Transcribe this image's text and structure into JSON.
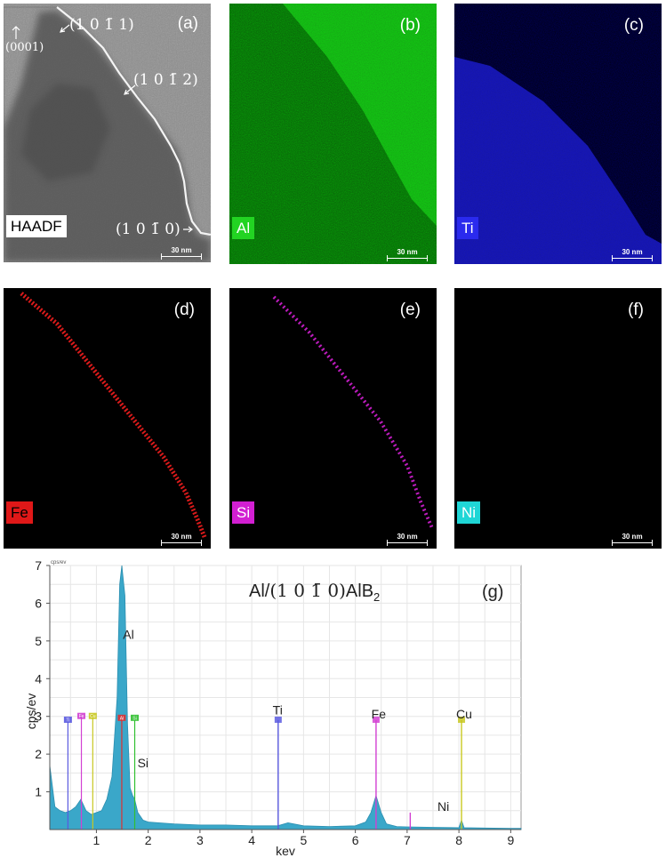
{
  "panels": [
    {
      "tag": "(a)",
      "element": "HAADF",
      "scale": "30 nm"
    },
    {
      "tag": "(b)",
      "element": "Al",
      "scale": "30 nm"
    },
    {
      "tag": "(c)",
      "element": "Ti",
      "scale": "30 nm"
    },
    {
      "tag": "(d)",
      "element": "Fe",
      "scale": "30 nm"
    },
    {
      "tag": "(e)",
      "element": "Si",
      "scale": "30 nm"
    },
    {
      "tag": "(f)",
      "element": "Ni",
      "scale": "30 nm"
    }
  ],
  "facets": {
    "basal": "(0001)",
    "f1011": "(1 0 1̄ 1)",
    "f1012": "(1 0 1̄ 2)",
    "f1010": "(1 0 1̄ 0)"
  },
  "colors": {
    "al": "#22d422",
    "ti": "#2a2aee",
    "fe": "#e01818",
    "si": "#d21fd2",
    "ni": "#1fd6d6",
    "spectrum": "#3aa7c9"
  },
  "chart_data": {
    "type": "area",
    "tag": "(g)",
    "title_main": "Al/",
    "title_index": "(1 0 1̄ 0)",
    "title_phase": "AlB",
    "title_sub": "2",
    "xlabel": "kev",
    "ylabel": "cps/ev",
    "yunit_small": "cps/ev",
    "xlim": [
      0.1,
      9.2
    ],
    "ylim": [
      0,
      7
    ],
    "xticks": [
      1,
      2,
      3,
      4,
      5,
      6,
      7,
      8,
      9
    ],
    "yticks": [
      1,
      2,
      3,
      4,
      5,
      6,
      7
    ],
    "grid": true,
    "spectrum": {
      "x": [
        0.1,
        0.2,
        0.3,
        0.4,
        0.5,
        0.6,
        0.7,
        0.8,
        0.9,
        1.0,
        1.1,
        1.2,
        1.3,
        1.4,
        1.45,
        1.49,
        1.55,
        1.6,
        1.65,
        1.7,
        1.74,
        1.8,
        1.9,
        2.0,
        2.2,
        2.5,
        3.0,
        3.5,
        4.0,
        4.5,
        4.7,
        5.0,
        5.5,
        6.0,
        6.2,
        6.3,
        6.4,
        6.5,
        6.6,
        6.8,
        7.0,
        7.5,
        8.0,
        8.05,
        8.1,
        8.5,
        9.0,
        9.2
      ],
      "y": [
        1.7,
        0.6,
        0.5,
        0.45,
        0.5,
        0.6,
        0.8,
        0.5,
        0.4,
        0.45,
        0.5,
        0.8,
        1.4,
        3.5,
        6.5,
        7.0,
        6.2,
        2.8,
        1.1,
        0.9,
        0.8,
        0.45,
        0.25,
        0.2,
        0.18,
        0.15,
        0.12,
        0.12,
        0.1,
        0.1,
        0.18,
        0.1,
        0.08,
        0.1,
        0.2,
        0.45,
        0.9,
        0.45,
        0.15,
        0.08,
        0.07,
        0.06,
        0.05,
        0.25,
        0.05,
        0.04,
        0.03,
        0.03
      ]
    },
    "element_markers": [
      {
        "label": "Ti",
        "x": 0.45,
        "height": 2.9,
        "color": "#5a5ae0"
      },
      {
        "label": "Fe",
        "x": 0.71,
        "height": 3.0,
        "color": "#d23fd2"
      },
      {
        "label": "Cu",
        "x": 0.93,
        "height": 3.0,
        "color": "#c8c820"
      },
      {
        "label": "Al",
        "x": 1.49,
        "height": 2.95,
        "color": "#e03030"
      },
      {
        "label": "Si",
        "x": 1.74,
        "height": 2.95,
        "color": "#30c030"
      }
    ],
    "peak_lines": [
      {
        "x": 4.51,
        "height": 2.9,
        "color": "#5a5ae0"
      },
      {
        "x": 6.4,
        "height": 2.9,
        "color": "#d23fd2"
      },
      {
        "x": 8.05,
        "height": 2.9,
        "color": "#c8c820"
      },
      {
        "x": 7.06,
        "height": 0.45,
        "color": "#d23fd2"
      }
    ],
    "annotations": [
      {
        "text": "Al",
        "x": 1.62,
        "y": 5.05
      },
      {
        "text": "Si",
        "x": 1.9,
        "y": 1.65
      },
      {
        "text": "Ti",
        "x": 4.5,
        "y": 3.05
      },
      {
        "text": "Fe",
        "x": 6.45,
        "y": 2.95
      },
      {
        "text": "Cu",
        "x": 8.1,
        "y": 2.95
      },
      {
        "text": "Ni",
        "x": 7.7,
        "y": 0.5
      }
    ]
  }
}
